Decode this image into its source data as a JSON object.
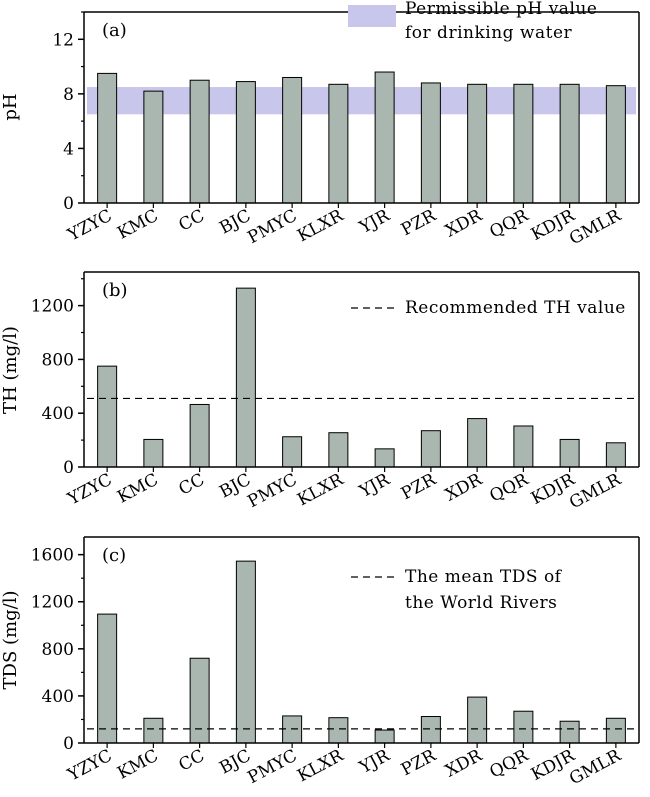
{
  "colors": {
    "bar_fill": "#aab6b0",
    "bar_stroke": "#000000",
    "band_fill": "#c9c6ec",
    "axis": "#000000"
  },
  "chart_data": [
    {
      "type": "bar",
      "panel_label": "(a)",
      "categories": [
        "YZYC",
        "KMC",
        "CC",
        "BJC",
        "PMYC",
        "KLXR",
        "YJR",
        "PZR",
        "XDR",
        "QQR",
        "KDJR",
        "GMLR"
      ],
      "values": [
        9.5,
        8.2,
        9.0,
        8.9,
        9.2,
        8.7,
        9.6,
        8.8,
        8.7,
        8.7,
        8.7,
        8.6
      ],
      "ylabel": "pH",
      "ylim": [
        0,
        14
      ],
      "yticks": [
        0,
        4,
        8,
        12
      ],
      "reference_band": {
        "min": 6.5,
        "max": 8.5,
        "legend": [
          "Permissible pH value",
          "for drinking water"
        ]
      },
      "legend_placement": "top-right",
      "grid": false
    },
    {
      "type": "bar",
      "panel_label": "(b)",
      "categories": [
        "YZYC",
        "KMC",
        "CC",
        "BJC",
        "PMYC",
        "KLXR",
        "YJR",
        "PZR",
        "XDR",
        "QQR",
        "KDJR",
        "GMLR"
      ],
      "values": [
        750,
        205,
        465,
        1330,
        225,
        255,
        135,
        270,
        360,
        305,
        205,
        180
      ],
      "ylabel": "TH (mg/l)",
      "ylim": [
        0,
        1450
      ],
      "yticks": [
        0,
        400,
        800,
        1200
      ],
      "reference_line": {
        "value": 510,
        "legend": [
          "Recommended TH value"
        ]
      },
      "legend_placement": "top-right",
      "grid": false
    },
    {
      "type": "bar",
      "panel_label": "(c)",
      "categories": [
        "YZYC",
        "KMC",
        "CC",
        "BJC",
        "PMYC",
        "KLXR",
        "YJR",
        "PZR",
        "XDR",
        "QQR",
        "KDJR",
        "GMLR"
      ],
      "values": [
        1095,
        210,
        720,
        1545,
        230,
        215,
        110,
        225,
        390,
        270,
        185,
        210
      ],
      "ylabel": "TDS (mg/l)",
      "ylim": [
        0,
        1750
      ],
      "yticks": [
        0,
        400,
        800,
        1200,
        1600
      ],
      "reference_line": {
        "value": 120,
        "legend": [
          "The mean TDS  of",
          "the World Rivers"
        ]
      },
      "legend_placement": "top-right",
      "grid": false
    }
  ]
}
